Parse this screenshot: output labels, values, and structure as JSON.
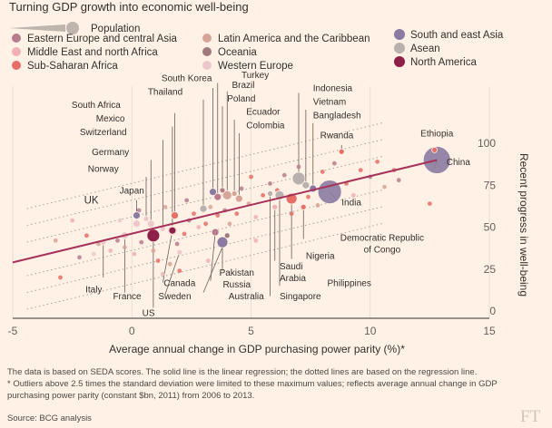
{
  "title": "Turning GDP growth into economic well-being",
  "legend": {
    "size_label": "Population",
    "regions": [
      {
        "name": "Eastern Europe and central Asia",
        "color": "#b87b8e"
      },
      {
        "name": "Middle East and north Africa",
        "color": "#f0b0b6"
      },
      {
        "name": "Sub-Saharan Africa",
        "color": "#e76f66"
      },
      {
        "name": "Latin America and the Caribbean",
        "color": "#d6a597"
      },
      {
        "name": "Oceania",
        "color": "#a07a7e"
      },
      {
        "name": "Western Europe",
        "color": "#ecc8cc"
      },
      {
        "name": "South and east Asia",
        "color": "#8b7aa1"
      },
      {
        "name": "Asean",
        "color": "#b9b1ad"
      },
      {
        "name": "North America",
        "color": "#8e1f48"
      }
    ]
  },
  "chart_data": {
    "type": "scatter",
    "title": "Turning GDP growth into economic well-being",
    "xlabel": "Average annual change in GDP purchasing power parity (%)*",
    "ylabel": "Recent progress in well-being",
    "xlim": [
      -5,
      15
    ],
    "ylim": [
      0,
      100
    ],
    "x_ticks": [
      "-5",
      "0",
      "5",
      "10",
      "15"
    ],
    "y_ticks": [
      "0",
      "25",
      "50",
      "75",
      "100"
    ],
    "regression": {
      "x": [
        -5,
        12.8
      ],
      "y": [
        29,
        90
      ]
    },
    "regression_offsets": [
      -30,
      -20,
      -10,
      10,
      20,
      30
    ],
    "labelled_points": [
      {
        "label": "China",
        "x": 12.8,
        "y": 90,
        "region": "South and east Asia",
        "r": 15,
        "lx": 12.7,
        "ly": 85,
        "tx": 13.2,
        "ty": 87,
        "anchor": "start"
      },
      {
        "label": "Ethiopia",
        "x": 12.7,
        "y": 96,
        "region": "Sub-Saharan Africa",
        "r": 3,
        "lx": 12.7,
        "ly": 98,
        "tx": 12.8,
        "ty": 104,
        "anchor": "middle"
      },
      {
        "label": "India",
        "x": 8.3,
        "y": 71,
        "region": "South and east Asia",
        "r": 13,
        "lx": 8.6,
        "ly": 66,
        "tx": 8.8,
        "ty": 63,
        "anchor": "start"
      },
      {
        "label": "Rwanda",
        "x": 8.8,
        "y": 95,
        "region": "Sub-Saharan Africa",
        "r": 3,
        "lx": 8.8,
        "ly": 99,
        "tx": 8.6,
        "ty": 103,
        "anchor": "middle"
      },
      {
        "label": "Bangladesh",
        "x": 7.6,
        "y": 73,
        "region": "South and east Asia",
        "r": 4,
        "lx": 7.6,
        "ly": 112,
        "tx": 7.6,
        "ty": 115,
        "anchor": "start"
      },
      {
        "label": "Vietnam",
        "x": 7.3,
        "y": 75,
        "region": "Asean",
        "r": 4,
        "lx": 7.3,
        "ly": 120,
        "tx": 7.6,
        "ty": 123,
        "anchor": "start"
      },
      {
        "label": "Indonesia",
        "x": 7.0,
        "y": 79,
        "region": "Asean",
        "r": 7,
        "lx": 7.0,
        "ly": 130,
        "tx": 7.6,
        "ty": 131,
        "anchor": "start"
      },
      {
        "label": "Democratic Republic of Congo",
        "x": 7.2,
        "y": 62,
        "region": "Sub-Saharan Africa",
        "r": 3,
        "lx": 7.2,
        "ly": 43,
        "tx": 10.5,
        "ty": 42,
        "anchor": "middle",
        "lines": [
          "Democratic Republic",
          "of Congo"
        ]
      },
      {
        "label": "Nigeria",
        "x": 6.7,
        "y": 67,
        "region": "Sub-Saharan Africa",
        "r": 6,
        "lx": 6.7,
        "ly": 31,
        "tx": 7.3,
        "ty": 31,
        "anchor": "start"
      },
      {
        "label": "Saudi Arabia",
        "x": 6.0,
        "y": 62,
        "region": "Middle East and north Africa",
        "r": 3,
        "lx": 6.0,
        "ly": 30,
        "tx": 6.2,
        "ty": 25,
        "anchor": "start",
        "lines": [
          "Saudi",
          "Arabia"
        ]
      },
      {
        "label": "Philippines",
        "x": 6.2,
        "y": 69,
        "region": "Asean",
        "r": 5,
        "lx": 6.2,
        "ly": 15,
        "tx": 8.2,
        "ty": 15,
        "anchor": "start"
      },
      {
        "label": "Singapore",
        "x": 5.8,
        "y": 70,
        "region": "Asean",
        "r": 3,
        "lx": 5.8,
        "ly": 9,
        "tx": 6.2,
        "ty": 7,
        "anchor": "start"
      },
      {
        "label": "Colombia",
        "x": 4.5,
        "y": 67,
        "region": "Latin America and the Caribbean",
        "r": 4,
        "lx": 4.5,
        "ly": 106,
        "tx": 4.8,
        "ty": 109,
        "anchor": "start"
      },
      {
        "label": "Ecuador",
        "x": 4.3,
        "y": 70,
        "region": "Latin America and the Caribbean",
        "r": 3,
        "lx": 4.3,
        "ly": 114,
        "tx": 4.8,
        "ty": 117,
        "anchor": "start"
      },
      {
        "label": "Poland",
        "x": 3.8,
        "y": 72,
        "region": "Eastern Europe and central Asia",
        "r": 3,
        "lx": 3.8,
        "ly": 122,
        "tx": 4.0,
        "ty": 125,
        "anchor": "start"
      },
      {
        "label": "Brazil",
        "x": 4.0,
        "y": 69,
        "region": "Latin America and the Caribbean",
        "r": 5,
        "lx": 4.0,
        "ly": 131,
        "tx": 4.2,
        "ty": 133,
        "anchor": "start"
      },
      {
        "label": "Turkey",
        "x": 3.6,
        "y": 68,
        "region": "Eastern Europe and central Asia",
        "r": 4,
        "lx": 3.6,
        "ly": 136,
        "tx": 4.6,
        "ty": 139,
        "anchor": "start"
      },
      {
        "label": "South Korea",
        "x": 3.4,
        "y": 71,
        "region": "South and east Asia",
        "r": 4,
        "lx": 3.4,
        "ly": 133,
        "tx": 2.3,
        "ty": 137,
        "anchor": "middle"
      },
      {
        "label": "Thailand",
        "x": 3.0,
        "y": 61,
        "region": "Asean",
        "r": 4,
        "lx": 3.0,
        "ly": 126,
        "tx": 1.4,
        "ty": 129,
        "anchor": "middle"
      },
      {
        "label": "South Africa",
        "x": 1.8,
        "y": 57,
        "region": "Sub-Saharan Africa",
        "r": 4,
        "lx": 1.8,
        "ly": 118,
        "tx": -1.5,
        "ty": 121,
        "anchor": "middle"
      },
      {
        "label": "Mexico",
        "x": 1.7,
        "y": 48,
        "region": "Latin America and the Caribbean",
        "r": 5,
        "lx": 1.7,
        "ly": 110,
        "tx": -0.9,
        "ty": 113,
        "anchor": "middle"
      },
      {
        "label": "Switzerland",
        "x": 1.3,
        "y": 49,
        "region": "Western Europe",
        "r": 3,
        "lx": 1.3,
        "ly": 102,
        "tx": -1.2,
        "ty": 105,
        "anchor": "middle"
      },
      {
        "label": "Germany",
        "x": 0.8,
        "y": 52,
        "region": "Western Europe",
        "r": 4,
        "lx": 0.8,
        "ly": 90,
        "tx": -0.9,
        "ty": 93,
        "anchor": "middle"
      },
      {
        "label": "Norway",
        "x": 0.6,
        "y": 55,
        "region": "Western Europe",
        "r": 3,
        "lx": 0.6,
        "ly": 80,
        "tx": -1.2,
        "ty": 83,
        "anchor": "middle"
      },
      {
        "label": "Japan",
        "x": 0.2,
        "y": 57,
        "region": "South and east Asia",
        "r": 4,
        "lx": 0.2,
        "ly": 66,
        "tx": 0.0,
        "ty": 70,
        "anchor": "middle"
      },
      {
        "label": "UK",
        "x": 0.2,
        "y": 52,
        "region": "Western Europe",
        "r": 4,
        "lx": 0.2,
        "ly": 61,
        "tx": -1.7,
        "ty": 64,
        "anchor": "middle",
        "big": true
      },
      {
        "label": "US",
        "x": 0.9,
        "y": 45,
        "region": "North America",
        "r": 7,
        "lx": 0.9,
        "ly": 2,
        "tx": 0.7,
        "ty": -3,
        "anchor": "middle"
      },
      {
        "label": "Italy",
        "x": -1.2,
        "y": 41,
        "region": "Western Europe",
        "r": 3,
        "lx": -1.2,
        "ly": 20,
        "tx": -1.6,
        "ty": 11,
        "anchor": "middle"
      },
      {
        "label": "France",
        "x": -0.3,
        "y": 45,
        "region": "Western Europe",
        "r": 4,
        "lx": -0.3,
        "ly": 11,
        "tx": -0.2,
        "ty": 7,
        "anchor": "middle"
      },
      {
        "label": "Canada",
        "x": 1.7,
        "y": 48,
        "region": "North America",
        "r": 4,
        "lx": 1.3,
        "ly": 17,
        "tx": 2.0,
        "ty": 15,
        "anchor": "middle"
      },
      {
        "label": "Sweden",
        "x": 2.0,
        "y": 35,
        "region": "Western Europe",
        "r": 3,
        "lx": 1.4,
        "ly": 10,
        "tx": 1.8,
        "ty": 7,
        "anchor": "middle"
      },
      {
        "label": "Pakistan",
        "x": 3.8,
        "y": 41,
        "region": "South and east Asia",
        "r": 6,
        "lx": 3.8,
        "ly": 24,
        "tx": 4.4,
        "ty": 21,
        "anchor": "middle"
      },
      {
        "label": "Russia",
        "x": 3.5,
        "y": 47,
        "region": "Eastern Europe and central Asia",
        "r": 4,
        "lx": 3.3,
        "ly": 18,
        "tx": 4.4,
        "ty": 14,
        "anchor": "middle"
      },
      {
        "label": "Australia",
        "x": 4.0,
        "y": 45,
        "region": "Oceania",
        "r": 3,
        "lx": 3.0,
        "ly": 11,
        "tx": 4.8,
        "ty": 7,
        "anchor": "middle"
      }
    ],
    "other_points": [
      [
        -3.0,
        20,
        "Sub-Saharan Africa"
      ],
      [
        -2.2,
        32,
        "Eastern Europe and central Asia"
      ],
      [
        -1.6,
        34,
        "Western Europe"
      ],
      [
        -1.4,
        40,
        "Latin America and the Caribbean"
      ],
      [
        -0.9,
        36,
        "Middle East and north Africa"
      ],
      [
        -0.6,
        42,
        "Eastern Europe and central Asia"
      ],
      [
        -0.3,
        38,
        "Latin America and the Caribbean"
      ],
      [
        0.1,
        34,
        "Middle East and north Africa"
      ],
      [
        0.4,
        41,
        "Eastern Europe and central Asia"
      ],
      [
        0.9,
        36,
        "Latin America and the Caribbean"
      ],
      [
        1.1,
        30,
        "Sub-Saharan Africa"
      ],
      [
        1.3,
        22,
        "Middle East and north Africa"
      ],
      [
        1.6,
        28,
        "Latin America and the Caribbean"
      ],
      [
        1.9,
        40,
        "Eastern Europe and central Asia"
      ],
      [
        2.2,
        46,
        "Sub-Saharan Africa"
      ],
      [
        2.4,
        54,
        "Eastern Europe and central Asia"
      ],
      [
        2.6,
        58,
        "Sub-Saharan Africa"
      ],
      [
        2.8,
        50,
        "Middle East and north Africa"
      ],
      [
        3.1,
        52,
        "Sub-Saharan Africa"
      ],
      [
        3.3,
        62,
        "Latin America and the Caribbean"
      ],
      [
        3.6,
        57,
        "Sub-Saharan Africa"
      ],
      [
        3.9,
        60,
        "Eastern Europe and central Asia"
      ],
      [
        4.1,
        52,
        "Latin America and the Caribbean"
      ],
      [
        4.4,
        58,
        "Sub-Saharan Africa"
      ],
      [
        4.6,
        73,
        "Eastern Europe and central Asia"
      ],
      [
        4.9,
        64,
        "Latin America and the Caribbean"
      ],
      [
        5.2,
        56,
        "Middle East and north Africa"
      ],
      [
        5.5,
        69,
        "Sub-Saharan Africa"
      ],
      [
        5.8,
        76,
        "Eastern Europe and central Asia"
      ],
      [
        6.1,
        72,
        "Sub-Saharan Africa"
      ],
      [
        6.4,
        81,
        "Eastern Europe and central Asia"
      ],
      [
        6.7,
        58,
        "Sub-Saharan Africa"
      ],
      [
        7.0,
        86,
        "Eastern Europe and central Asia"
      ],
      [
        7.4,
        68,
        "Sub-Saharan Africa"
      ],
      [
        7.8,
        63,
        "Latin America and the Caribbean"
      ],
      [
        8.0,
        83,
        "Sub-Saharan Africa"
      ],
      [
        8.5,
        88,
        "Eastern Europe and central Asia"
      ],
      [
        9.0,
        76,
        "Sub-Saharan Africa"
      ],
      [
        9.3,
        69,
        "Middle East and north Africa"
      ],
      [
        9.6,
        84,
        "Sub-Saharan Africa"
      ],
      [
        10.0,
        80,
        "Eastern Europe and central Asia"
      ],
      [
        10.3,
        89,
        "Sub-Saharan Africa"
      ],
      [
        10.6,
        74,
        "Latin America and the Caribbean"
      ],
      [
        11.0,
        84,
        "Sub-Saharan Africa"
      ],
      [
        11.2,
        78,
        "Eastern Europe and central Asia"
      ],
      [
        12.5,
        64,
        "Sub-Saharan Africa"
      ],
      [
        1.4,
        62,
        "Latin America and the Caribbean"
      ],
      [
        0.3,
        60,
        "Eastern Europe and central Asia"
      ],
      [
        -0.5,
        54,
        "Western Europe"
      ],
      [
        2.3,
        66,
        "Eastern Europe and central Asia"
      ],
      [
        5.0,
        80,
        "Sub-Saharan Africa"
      ],
      [
        -2.5,
        54,
        "Middle East and north Africa"
      ],
      [
        3.2,
        30,
        "Middle East and north Africa"
      ],
      [
        2.0,
        24,
        "Sub-Saharan Africa"
      ],
      [
        5.2,
        42,
        "Middle East and north Africa"
      ],
      [
        -1.9,
        45,
        "Sub-Saharan Africa"
      ],
      [
        -3.2,
        42,
        "Latin America and the Caribbean"
      ]
    ]
  },
  "notes": [
    "The data is based on SEDA scores. The solid line is the linear regression; the dotted lines are based on the regression line.",
    "* Outliers above 2.5 times the standard deviation were limited to these maximum values; reflects average annual change in GDP",
    "purchasing power parity (constant $bn, 2011) from 2006 to 2013."
  ],
  "source": "Source: BCG analysis",
  "logo": "FT"
}
